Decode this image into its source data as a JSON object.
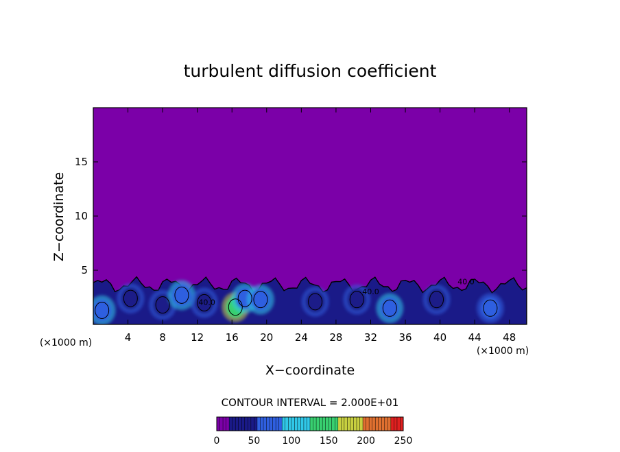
{
  "chart_data": {
    "type": "heatmap",
    "title": "turbulent diffusion coefficient",
    "xlabel": "X−coordinate",
    "ylabel": "Z−coordinate",
    "x_unit_left": "(×1000 m)",
    "x_unit_right": "(×1000 m)",
    "xlim": [
      0,
      50
    ],
    "ylim": [
      0,
      20
    ],
    "x_ticks": [
      4,
      8,
      12,
      16,
      20,
      24,
      28,
      32,
      36,
      40,
      44,
      48
    ],
    "y_ticks": [
      5,
      10,
      15
    ],
    "background_value": 0,
    "turbulent_layer_top": 4,
    "eddies": [
      {
        "x": 1.0,
        "z": 1.3,
        "value": 60
      },
      {
        "x": 4.3,
        "z": 2.4,
        "value": 45
      },
      {
        "x": 8.0,
        "z": 1.8,
        "value": 40
      },
      {
        "x": 10.2,
        "z": 2.7,
        "value": 60
      },
      {
        "x": 12.8,
        "z": 2.0,
        "value": 45
      },
      {
        "x": 16.4,
        "z": 1.6,
        "value": 150
      },
      {
        "x": 17.5,
        "z": 2.4,
        "value": 80
      },
      {
        "x": 19.3,
        "z": 2.3,
        "value": 65
      },
      {
        "x": 25.6,
        "z": 2.1,
        "value": 40
      },
      {
        "x": 30.4,
        "z": 2.3,
        "value": 45
      },
      {
        "x": 34.2,
        "z": 1.5,
        "value": 65
      },
      {
        "x": 39.6,
        "z": 2.3,
        "value": 40
      },
      {
        "x": 45.8,
        "z": 1.5,
        "value": 55
      }
    ],
    "contour_labels": [
      {
        "x": 13.1,
        "z": 1.8,
        "text": "40.0"
      },
      {
        "x": 32.0,
        "z": 2.8,
        "text": "40.0"
      },
      {
        "x": 43.0,
        "z": 3.7,
        "text": "40.0"
      }
    ],
    "contour_interval_text": "CONTOUR INTERVAL = 2.000E+01",
    "colorbar": {
      "min": 0,
      "max": 250,
      "ticks": [
        "0",
        "50",
        "100",
        "150",
        "200",
        "250"
      ],
      "colors": [
        "#7b00a8",
        "#1a1a88",
        "#2f5fe0",
        "#30c8e8",
        "#38d070",
        "#c8d040",
        "#e07030",
        "#e02020"
      ]
    }
  }
}
